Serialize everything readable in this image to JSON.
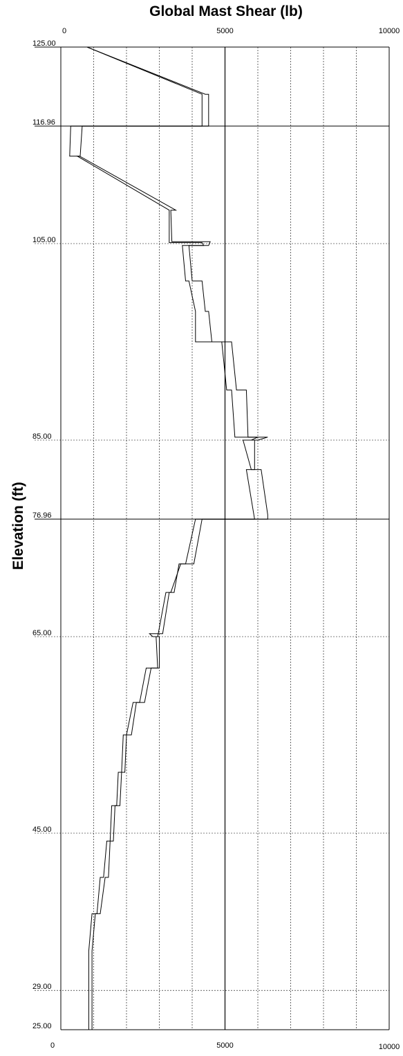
{
  "chart_data": {
    "type": "line",
    "title": "Global Mast Shear (lb)",
    "xlabel": "",
    "ylabel": "Elevation (ft)",
    "xlim": [
      0,
      10000
    ],
    "ylim": [
      25,
      125
    ],
    "x_ticks": [
      "0",
      "5000",
      "10000"
    ],
    "elevation_labels": [
      "125.00",
      "116.96",
      "105.00",
      "85.00",
      "76.96",
      "65.00",
      "45.00",
      "29.00",
      "25.00"
    ],
    "section_elevations": [
      125.0,
      116.96,
      76.96
    ],
    "dotted_elevations": [
      105.0,
      85.0,
      65.0,
      45.0,
      29.0
    ],
    "grid": true,
    "series": [
      {
        "points": [
          [
            800,
            125.0
          ],
          [
            4400,
            120.2
          ],
          [
            4500,
            120.2
          ],
          [
            4500,
            116.96
          ],
          [
            300,
            116.96
          ],
          [
            270,
            113.9
          ],
          [
            570,
            113.9
          ],
          [
            3500,
            108.4
          ],
          [
            3350,
            108.4
          ],
          [
            3380,
            105.2
          ],
          [
            4550,
            105.2
          ],
          [
            4500,
            104.8
          ],
          [
            3900,
            104.8
          ],
          [
            4000,
            101.2
          ],
          [
            4300,
            101.2
          ],
          [
            4400,
            98.1
          ],
          [
            4500,
            98.1
          ],
          [
            4600,
            95.0
          ],
          [
            5200,
            95.0
          ],
          [
            5350,
            90.1
          ],
          [
            5650,
            90.1
          ],
          [
            5700,
            85.3
          ],
          [
            6300,
            85.3
          ],
          [
            6000,
            85.0
          ],
          [
            5550,
            85.0
          ],
          [
            5800,
            82.0
          ],
          [
            6100,
            82.0
          ],
          [
            6300,
            77.4
          ],
          [
            6300,
            76.96
          ],
          [
            4300,
            76.96
          ],
          [
            4050,
            72.4
          ],
          [
            3600,
            72.4
          ],
          [
            3450,
            69.5
          ],
          [
            3300,
            69.5
          ],
          [
            3100,
            65.3
          ],
          [
            2700,
            65.3
          ],
          [
            2800,
            65.0
          ],
          [
            3000,
            65.0
          ],
          [
            3000,
            61.8
          ],
          [
            2750,
            61.8
          ],
          [
            2550,
            58.3
          ],
          [
            2300,
            58.3
          ],
          [
            2150,
            55.0
          ],
          [
            2000,
            55.0
          ],
          [
            1950,
            51.2
          ],
          [
            1850,
            51.2
          ],
          [
            1800,
            47.8
          ],
          [
            1650,
            47.8
          ],
          [
            1600,
            44.2
          ],
          [
            1500,
            44.2
          ],
          [
            1450,
            40.5
          ],
          [
            1350,
            40.5
          ],
          [
            1200,
            36.8
          ],
          [
            1050,
            36.8
          ],
          [
            950,
            33.0
          ],
          [
            950,
            25.0
          ]
        ]
      },
      {
        "points": [
          [
            800,
            125.0
          ],
          [
            4300,
            120.2
          ],
          [
            4300,
            116.96
          ],
          [
            650,
            116.96
          ],
          [
            590,
            113.9
          ],
          [
            500,
            113.9
          ],
          [
            3300,
            108.4
          ],
          [
            3300,
            105.1
          ],
          [
            4300,
            105.1
          ],
          [
            4350,
            104.8
          ],
          [
            3700,
            104.8
          ],
          [
            3800,
            101.2
          ],
          [
            3900,
            101.2
          ],
          [
            4100,
            98.1
          ],
          [
            4100,
            95.0
          ],
          [
            4900,
            95.0
          ],
          [
            5050,
            90.1
          ],
          [
            5200,
            90.1
          ],
          [
            5300,
            85.3
          ],
          [
            6000,
            85.3
          ],
          [
            5800,
            85.0
          ],
          [
            5900,
            85.0
          ],
          [
            5900,
            82.0
          ],
          [
            5650,
            82.0
          ],
          [
            5900,
            76.96
          ],
          [
            4100,
            76.96
          ],
          [
            3800,
            72.4
          ],
          [
            3650,
            72.4
          ],
          [
            3350,
            69.5
          ],
          [
            3200,
            69.5
          ],
          [
            2950,
            65.0
          ],
          [
            2900,
            65.0
          ],
          [
            2950,
            61.8
          ],
          [
            2600,
            61.8
          ],
          [
            2400,
            58.3
          ],
          [
            2200,
            58.3
          ],
          [
            2000,
            55.0
          ],
          [
            1900,
            55.0
          ],
          [
            1850,
            51.2
          ],
          [
            1750,
            51.2
          ],
          [
            1700,
            47.8
          ],
          [
            1550,
            47.8
          ],
          [
            1500,
            44.2
          ],
          [
            1400,
            44.2
          ],
          [
            1300,
            40.5
          ],
          [
            1200,
            40.5
          ],
          [
            1100,
            36.8
          ],
          [
            950,
            36.8
          ],
          [
            850,
            33.0
          ],
          [
            850,
            25.0
          ]
        ]
      }
    ]
  }
}
